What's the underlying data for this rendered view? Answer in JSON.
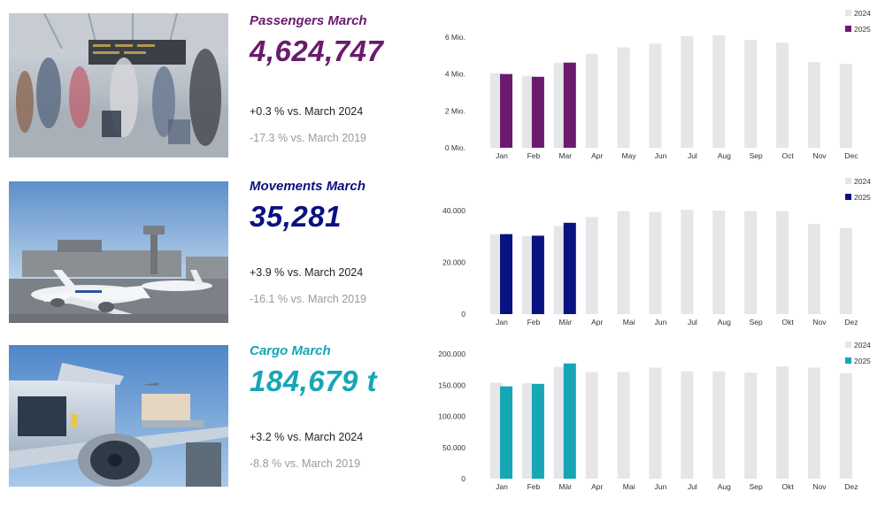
{
  "colors": {
    "bar_2024": "#e6e6e9",
    "passengers": "#6a1b6e",
    "movements": "#0a1280",
    "cargo": "#16a6b6"
  },
  "kpis": [
    {
      "title": "Passengers March",
      "value": "4,624,747",
      "delta_2024": "+0.3 % vs. March 2024",
      "delta_2019": "-17.3 % vs. March 2019",
      "color": "#6a1b6e",
      "photo": "airport-terminal-photo"
    },
    {
      "title": "Movements March",
      "value": "35,281",
      "delta_2024": "+3.9 % vs. March 2024",
      "delta_2019": "-16.1 % vs. March 2019",
      "color": "#0a1280",
      "photo": "aircraft-apron-photo"
    },
    {
      "title": "Cargo March",
      "value": "184,679 t",
      "delta_2024": "+3.2 % vs. March 2024",
      "delta_2019": "-8.8 % vs. March 2019",
      "color": "#16a6b6",
      "photo": "cargo-loading-photo"
    }
  ],
  "chart_data": [
    {
      "type": "bar",
      "categories": [
        "Jan",
        "Feb",
        "Mar",
        "Apr",
        "May",
        "Jun",
        "Jul",
        "Aug",
        "Sep",
        "Oct",
        "Nov",
        "Dec"
      ],
      "yticks": [
        0,
        2,
        4,
        6
      ],
      "ytick_labels": [
        "0 Mio.",
        "2 Mio.",
        "4 Mio.",
        "6 Mio."
      ],
      "ylim": [
        0,
        6
      ],
      "grid": false,
      "legend_position": "top-right",
      "series": [
        {
          "name": "2024",
          "color": "#e6e6e9",
          "values": [
            4.05,
            3.9,
            4.6,
            5.1,
            5.45,
            5.65,
            6.05,
            6.1,
            5.85,
            5.7,
            4.65,
            4.55
          ]
        },
        {
          "name": "2025",
          "color": "#6a1b6e",
          "values": [
            4.0,
            3.85,
            4.62,
            null,
            null,
            null,
            null,
            null,
            null,
            null,
            null,
            null
          ]
        }
      ]
    },
    {
      "type": "bar",
      "categories": [
        "Jan",
        "Feb",
        "Mär",
        "Apr",
        "Mai",
        "Jun",
        "Jul",
        "Aug",
        "Sep",
        "Okt",
        "Nov",
        "Dez"
      ],
      "yticks": [
        0,
        20000,
        40000
      ],
      "ytick_labels": [
        "0",
        "20.000",
        "40.000"
      ],
      "ylim": [
        0,
        40000
      ],
      "grid": false,
      "legend_position": "top-right",
      "series": [
        {
          "name": "2024",
          "color": "#e6e6e9",
          "values": [
            30800,
            30100,
            34000,
            37500,
            39800,
            39500,
            40300,
            40000,
            39800,
            39800,
            34800,
            33200
          ]
        },
        {
          "name": "2025",
          "color": "#0a1280",
          "values": [
            30900,
            30300,
            35281,
            null,
            null,
            null,
            null,
            null,
            null,
            null,
            null,
            null
          ]
        }
      ]
    },
    {
      "type": "bar",
      "categories": [
        "Jan",
        "Feb",
        "Mär",
        "Apr",
        "Mai",
        "Jun",
        "Jul",
        "Aug",
        "Sep",
        "Okt",
        "Nov",
        "Dez"
      ],
      "yticks": [
        0,
        50000,
        100000,
        150000,
        200000
      ],
      "ytick_labels": [
        "0",
        "50.000",
        "100.000",
        "150.000",
        "200.000"
      ],
      "ylim": [
        0,
        200000
      ],
      "grid": false,
      "legend_position": "top-right",
      "series": [
        {
          "name": "2024",
          "color": "#e6e6e9",
          "values": [
            154000,
            153000,
            179000,
            171000,
            171000,
            178000,
            172000,
            172000,
            170000,
            180000,
            178000,
            169000
          ]
        },
        {
          "name": "2025",
          "color": "#16a6b6",
          "values": [
            148000,
            152000,
            184679,
            null,
            null,
            null,
            null,
            null,
            null,
            null,
            null,
            null
          ]
        }
      ]
    }
  ]
}
